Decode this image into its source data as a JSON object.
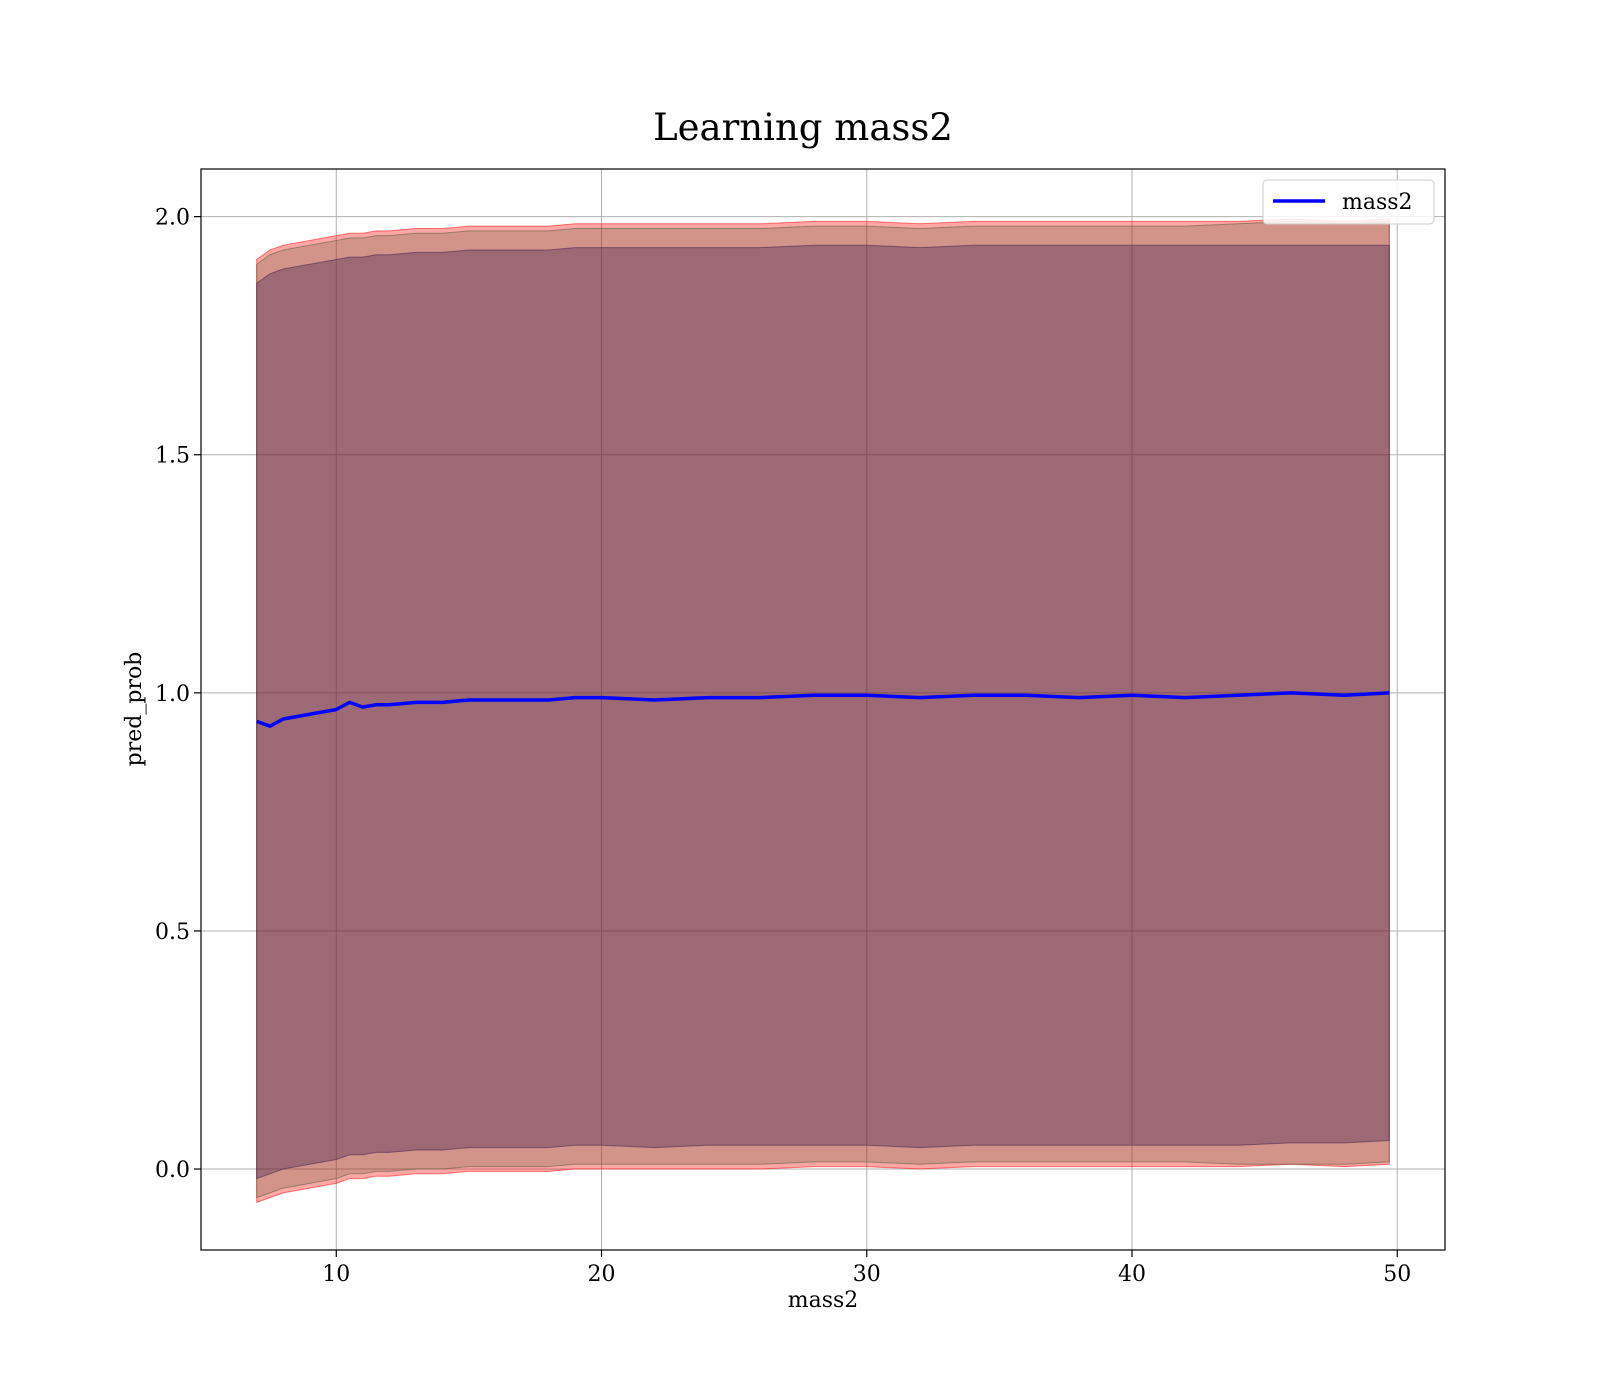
{
  "chart_data": {
    "type": "line",
    "title": "Learning mass2",
    "xlabel": "mass2",
    "ylabel": "pred_prob",
    "xlim": [
      4.9,
      51.8
    ],
    "ylim": [
      -0.17,
      2.1
    ],
    "xticks": [
      10,
      20,
      30,
      40,
      50
    ],
    "xtick_labels": [
      "10",
      "20",
      "30",
      "40",
      "50"
    ],
    "yticks": [
      0.0,
      0.5,
      1.0,
      1.5,
      2.0
    ],
    "ytick_labels": [
      "0.0",
      "0.5",
      "1.0",
      "1.5",
      "2.0"
    ],
    "grid": true,
    "legend_position": "top-right",
    "x": [
      7.0,
      7.5,
      8.0,
      8.5,
      9.0,
      9.5,
      10.0,
      10.5,
      11.0,
      11.5,
      12.0,
      13.0,
      14.0,
      15.0,
      16.0,
      17.0,
      18.0,
      19.0,
      20.0,
      22.0,
      24.0,
      26.0,
      28.0,
      30.0,
      32.0,
      34.0,
      36.0,
      38.0,
      40.0,
      42.0,
      44.0,
      46.0,
      48.0,
      49.7
    ],
    "series": [
      {
        "name": "mass2",
        "color": "#0000ff",
        "values": [
          0.94,
          0.93,
          0.945,
          0.95,
          0.955,
          0.96,
          0.965,
          0.98,
          0.97,
          0.975,
          0.975,
          0.98,
          0.98,
          0.985,
          0.985,
          0.985,
          0.985,
          0.99,
          0.99,
          0.985,
          0.99,
          0.99,
          0.995,
          0.995,
          0.99,
          0.995,
          0.995,
          0.99,
          0.995,
          0.99,
          0.995,
          1.0,
          0.995,
          1.0
        ]
      }
    ],
    "bands": [
      {
        "color": "#ff0000",
        "opacity": 0.35,
        "upper": [
          1.91,
          1.93,
          1.94,
          1.945,
          1.95,
          1.955,
          1.96,
          1.965,
          1.965,
          1.97,
          1.97,
          1.975,
          1.975,
          1.98,
          1.98,
          1.98,
          1.98,
          1.985,
          1.985,
          1.985,
          1.985,
          1.985,
          1.99,
          1.99,
          1.985,
          1.99,
          1.99,
          1.99,
          1.99,
          1.99,
          1.99,
          1.995,
          1.99,
          1.995
        ],
        "lower": [
          -0.07,
          -0.06,
          -0.05,
          -0.045,
          -0.04,
          -0.035,
          -0.03,
          -0.02,
          -0.02,
          -0.015,
          -0.015,
          -0.01,
          -0.01,
          -0.005,
          -0.005,
          -0.005,
          -0.005,
          0.0,
          0.0,
          0.0,
          0.0,
          0.0,
          0.005,
          0.005,
          0.0,
          0.005,
          0.005,
          0.005,
          0.005,
          0.005,
          0.005,
          0.01,
          0.005,
          0.01
        ]
      },
      {
        "color": "#4b5a32",
        "opacity": 0.25,
        "upper": [
          1.9,
          1.92,
          1.93,
          1.935,
          1.94,
          1.945,
          1.95,
          1.955,
          1.955,
          1.96,
          1.96,
          1.965,
          1.965,
          1.97,
          1.97,
          1.97,
          1.97,
          1.975,
          1.975,
          1.975,
          1.975,
          1.975,
          1.98,
          1.98,
          1.975,
          1.98,
          1.98,
          1.98,
          1.98,
          1.98,
          1.985,
          1.99,
          1.985,
          1.99
        ],
        "lower": [
          -0.06,
          -0.05,
          -0.04,
          -0.035,
          -0.03,
          -0.025,
          -0.02,
          -0.01,
          -0.01,
          -0.005,
          -0.005,
          0.0,
          0.0,
          0.005,
          0.005,
          0.005,
          0.005,
          0.01,
          0.01,
          0.01,
          0.01,
          0.01,
          0.015,
          0.015,
          0.01,
          0.015,
          0.015,
          0.015,
          0.015,
          0.015,
          0.01,
          0.01,
          0.01,
          0.015
        ]
      },
      {
        "color": "#3c1e50",
        "opacity": 0.35,
        "upper": [
          1.86,
          1.88,
          1.89,
          1.895,
          1.9,
          1.905,
          1.91,
          1.915,
          1.915,
          1.92,
          1.92,
          1.925,
          1.925,
          1.93,
          1.93,
          1.93,
          1.93,
          1.935,
          1.935,
          1.935,
          1.935,
          1.935,
          1.94,
          1.94,
          1.935,
          1.94,
          1.94,
          1.94,
          1.94,
          1.94,
          1.94,
          1.94,
          1.94,
          1.94
        ],
        "lower": [
          -0.02,
          -0.01,
          0.0,
          0.005,
          0.01,
          0.015,
          0.02,
          0.03,
          0.03,
          0.035,
          0.035,
          0.04,
          0.04,
          0.045,
          0.045,
          0.045,
          0.045,
          0.05,
          0.05,
          0.045,
          0.05,
          0.05,
          0.05,
          0.05,
          0.045,
          0.05,
          0.05,
          0.05,
          0.05,
          0.05,
          0.05,
          0.055,
          0.055,
          0.06
        ]
      }
    ]
  }
}
